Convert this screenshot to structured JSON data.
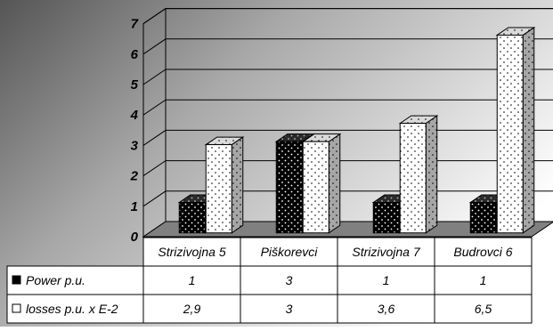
{
  "chart_data": {
    "type": "bar",
    "categories": [
      "Strizivojna 5",
      "Piškorevci",
      "Strizivojna 7",
      "Budrovci 6"
    ],
    "series": [
      {
        "name": "Power p.u.",
        "values": [
          1,
          3,
          1,
          1
        ],
        "pattern": "black-dotted",
        "color": "#000000"
      },
      {
        "name": "losses p.u. x E-2",
        "values": [
          2.9,
          3,
          3.6,
          6.5
        ],
        "pattern": "white-dotted",
        "color": "#ffffff"
      }
    ],
    "data_table": {
      "rows": [
        {
          "label": "Power p.u.",
          "marker": "black-square",
          "cells": [
            "1",
            "3",
            "1",
            "1"
          ]
        },
        {
          "label": "losses p.u. x E-2",
          "marker": "white-square",
          "cells": [
            "2,9",
            "3",
            "3,6",
            "6,5"
          ]
        }
      ]
    },
    "y_ticks": [
      "0",
      "1",
      "2",
      "3",
      "4",
      "5",
      "6",
      "7"
    ],
    "ylim": [
      0,
      7
    ],
    "grid": true,
    "three_d": true,
    "title": "",
    "xlabel": "",
    "ylabel": ""
  }
}
